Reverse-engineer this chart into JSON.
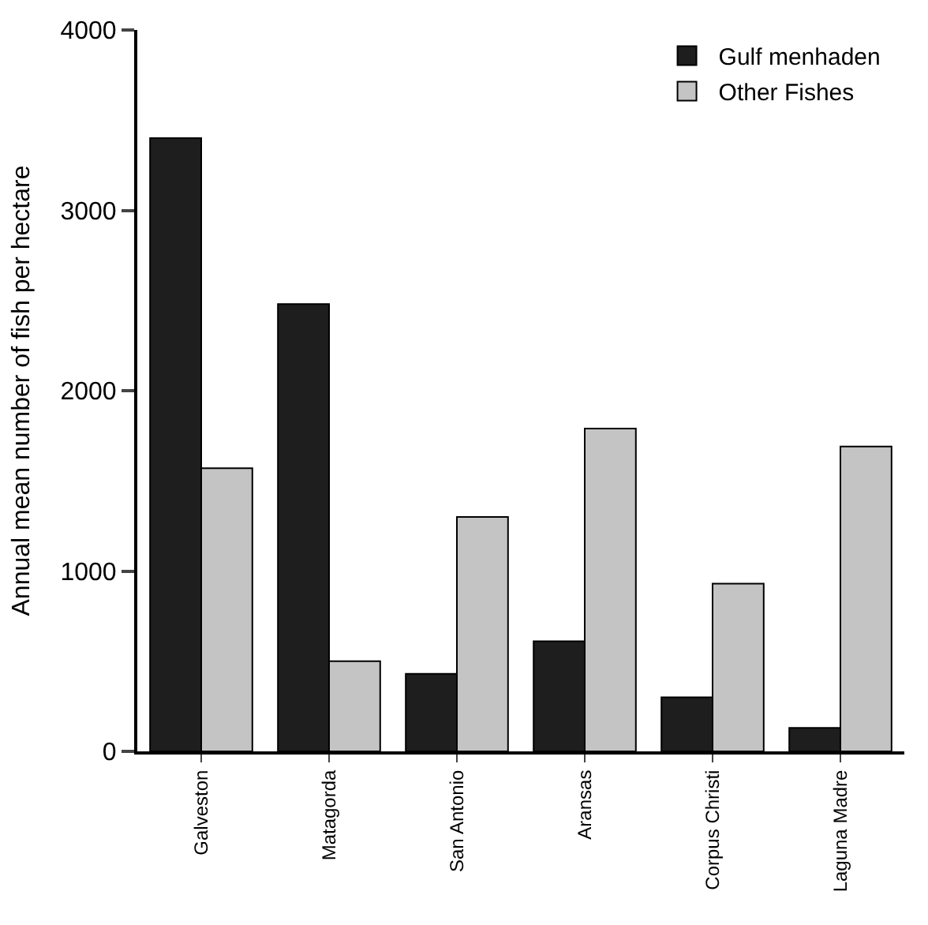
{
  "chart_data": {
    "type": "bar",
    "ylabel": "Annual mean number of fish per hectare",
    "categories": [
      "Galveston",
      "Matagorda",
      "San Antonio",
      "Aransas",
      "Corpus Christi",
      "Laguna Madre"
    ],
    "series": [
      {
        "name": "Gulf menhaden",
        "color": "#1e1e1e",
        "values": [
          3400,
          2480,
          430,
          610,
          300,
          130
        ]
      },
      {
        "name": "Other Fishes",
        "color": "#c4c4c4",
        "values": [
          1570,
          500,
          1300,
          1790,
          930,
          1690
        ]
      }
    ],
    "ylim": [
      0,
      4000
    ],
    "yticks": [
      0,
      1000,
      2000,
      3000,
      4000
    ],
    "legend": "top right"
  }
}
